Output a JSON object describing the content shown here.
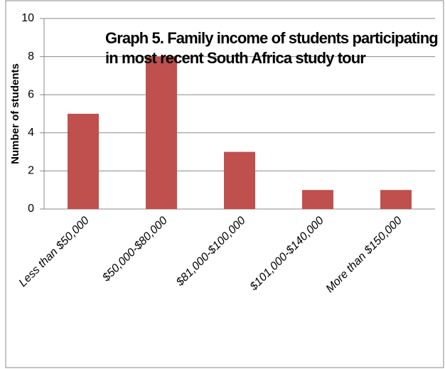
{
  "chart_data": {
    "type": "bar",
    "title": "Graph 5. Family income of students participating in most recent South Africa study tour",
    "y_label": "Number of students",
    "categories": [
      "Less than $50,000",
      "$50,000-$80,000",
      "$81,000-$100,000",
      "$101,000-$140,000",
      "More than $150,000"
    ],
    "values": [
      5,
      8,
      3,
      1,
      1
    ],
    "color": "#c0504d",
    "ylim": [
      0,
      10
    ],
    "yticks": [
      0,
      2,
      4,
      6,
      8,
      10
    ],
    "grid": true
  }
}
